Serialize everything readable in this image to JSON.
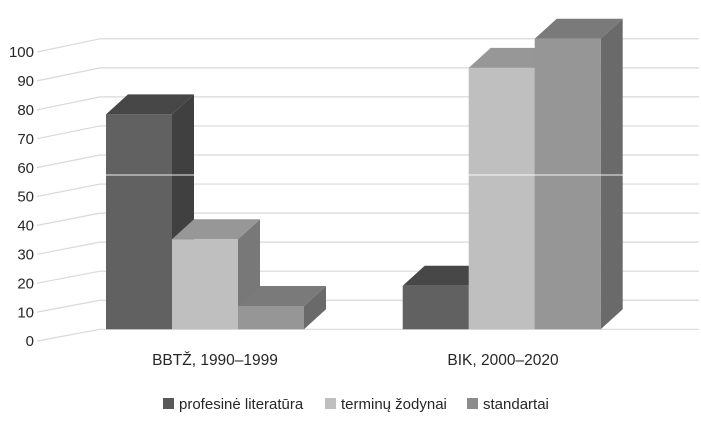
{
  "chart_data": {
    "type": "bar",
    "style": "3d-clustered-column",
    "title": "",
    "xlabel": "",
    "ylabel": "",
    "categories": [
      "BBTŽ, 1990–1999",
      "BIK, 2000–2020"
    ],
    "series": [
      {
        "name": "profesinė literatūra",
        "values": [
          74,
          15
        ],
        "color_front": "#616161",
        "color_top": "#474747",
        "color_side": "#404040",
        "legend_color": "#595959"
      },
      {
        "name": "terminų žodynai",
        "values": [
          31,
          90
        ],
        "color_front": "#bfbfbf",
        "color_top": "#979797",
        "color_side": "#787878",
        "legend_color": "#bfbfbf"
      },
      {
        "name": "standartai",
        "values": [
          8,
          100
        ],
        "color_front": "#969696",
        "color_top": "#7a7a7a",
        "color_side": "#6a6a6a",
        "legend_color": "#8c8c8c"
      }
    ],
    "ylim": [
      0,
      100
    ],
    "ytick_step": 10,
    "ytick_labels": [
      "0",
      "10",
      "20",
      "30",
      "40",
      "50",
      "60",
      "70",
      "80",
      "90",
      "100"
    ],
    "grid": true,
    "legend_position": "bottom"
  },
  "colors": {
    "gridline": "#d9d9d9",
    "text": "#262626",
    "background": "#ffffff",
    "artifact_line": "rgba(255,255,255,0.6)"
  }
}
